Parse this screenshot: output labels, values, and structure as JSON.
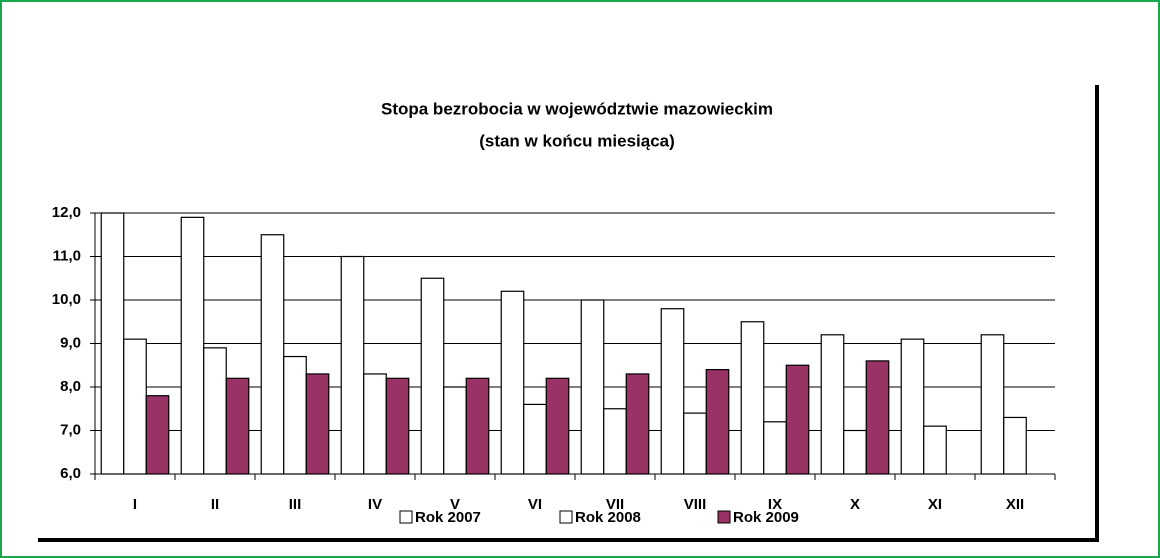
{
  "chart_data": {
    "type": "bar",
    "title": "Stopa bezrobocia w województwie mazowieckim",
    "subtitle": "(stan w końcu miesiąca)",
    "categories": [
      "I",
      "II",
      "III",
      "IV",
      "V",
      "VI",
      "VII",
      "VIII",
      "IX",
      "X",
      "XI",
      "XII"
    ],
    "series": [
      {
        "name": "Rok 2007",
        "color": "#ffffff",
        "values": [
          12.0,
          11.9,
          11.5,
          11.0,
          10.5,
          10.2,
          10.0,
          9.8,
          9.5,
          9.2,
          9.1,
          9.2
        ]
      },
      {
        "name": "Rok 2008",
        "color": "#ffffff",
        "values": [
          9.1,
          8.9,
          8.7,
          8.3,
          8.0,
          7.6,
          7.5,
          7.4,
          7.2,
          7.0,
          7.1,
          7.3
        ]
      },
      {
        "name": "Rok 2009",
        "color": "#993366",
        "values": [
          7.8,
          8.2,
          8.3,
          8.2,
          8.2,
          8.2,
          8.3,
          8.4,
          8.5,
          8.6,
          null,
          null
        ]
      }
    ],
    "ylim": [
      6,
      12
    ],
    "yticks": [
      {
        "value": 6,
        "label": "6,0"
      },
      {
        "value": 7,
        "label": "7,0"
      },
      {
        "value": 8,
        "label": "8,0"
      },
      {
        "value": 9,
        "label": "9,0"
      },
      {
        "value": 10,
        "label": "10,0"
      },
      {
        "value": 11,
        "label": "11,0"
      },
      {
        "value": 12,
        "label": "12,0"
      }
    ],
    "grid": true
  }
}
